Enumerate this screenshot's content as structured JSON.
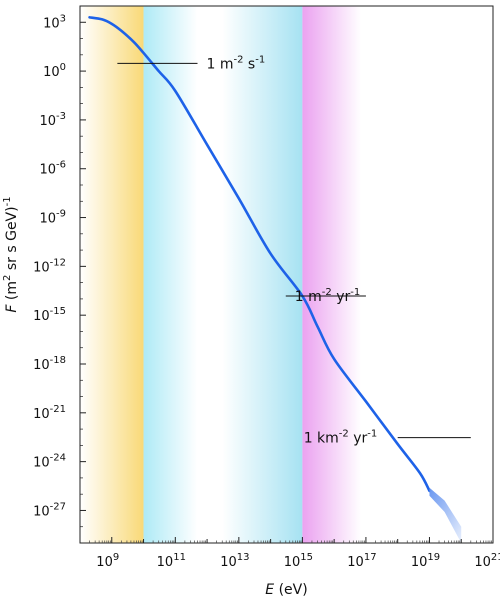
{
  "chart_data": {
    "type": "line",
    "title": "",
    "xlabel": {
      "var": "E",
      "unit": " (eV)"
    },
    "ylabel": {
      "var": "F",
      "base": " (m",
      "sup1": "2",
      "mid": " sr s GeV)",
      "sup2": "-1"
    },
    "xscale": "log",
    "yscale": "log",
    "xlim": [
      100000000.0,
      1e+21
    ],
    "ylim": [
      1e-29,
      10000.0
    ],
    "x_ticks": [
      {
        "base": "10",
        "exp": "9"
      },
      {
        "base": "10",
        "exp": "11"
      },
      {
        "base": "10",
        "exp": "13"
      },
      {
        "base": "10",
        "exp": "15"
      },
      {
        "base": "10",
        "exp": "17"
      },
      {
        "base": "10",
        "exp": "19"
      },
      {
        "base": "10",
        "exp": "21"
      }
    ],
    "y_ticks": [
      {
        "base": "10",
        "exp": "3"
      },
      {
        "base": "10",
        "exp": "0"
      },
      {
        "base": "10",
        "exp": "-3"
      },
      {
        "base": "10",
        "exp": "-6"
      },
      {
        "base": "10",
        "exp": "-9"
      },
      {
        "base": "10",
        "exp": "-12"
      },
      {
        "base": "10",
        "exp": "-15"
      },
      {
        "base": "10",
        "exp": "-18"
      },
      {
        "base": "10",
        "exp": "-21"
      },
      {
        "base": "10",
        "exp": "-24"
      },
      {
        "base": "10",
        "exp": "-27"
      }
    ],
    "bands": [
      {
        "x": [
          100000000.0,
          10000000000.0
        ],
        "color": "#f9d977",
        "style": "fade-left"
      },
      {
        "x": [
          10000000000.0,
          500000000000.0
        ],
        "color": "#aeeaf6",
        "style": "fade-right"
      },
      {
        "x": [
          3000000000000.0,
          1000000000000000.0
        ],
        "color": "#a6e2f2",
        "style": "fade-left"
      },
      {
        "x": [
          1000000000000000.0,
          7e+16
        ],
        "color": "#eba2f0",
        "style": "fade-right"
      }
    ],
    "series": [
      {
        "color": "#1e62e8",
        "points": [
          [
            200000000.0,
            2000.0
          ],
          [
            500000000.0,
            1500.0
          ],
          [
            1000000000.0,
            800.0
          ],
          [
            2000000000.0,
            300.0
          ],
          [
            5000000000.0,
            60.0
          ],
          [
            10000000000.0,
            13.0
          ],
          [
            30000000000.0,
            1.0
          ],
          [
            100000000000.0,
            0.06
          ],
          [
            1000000000000.0,
            3e-05
          ],
          [
            10000000000000.0,
            1.5e-08
          ],
          [
            100000000000000.0,
            6e-12
          ],
          [
            1000000000000000.0,
            1.5e-14
          ],
          [
            3000000000000000.0,
            2e-16
          ],
          [
            1e+16,
            2e-18
          ],
          [
            1e+17,
            5e-21
          ],
          [
            1e+18,
            1.2e-23
          ],
          [
            5e+18,
            2e-25
          ],
          [
            1e+19,
            1.6e-26
          ]
        ]
      }
    ],
    "tail": {
      "color": "#6a97f0",
      "upper": [
        [
          1e+19,
          2.5e-26
        ],
        [
          3e+19,
          4e-27
        ],
        [
          1e+20,
          1e-28
        ]
      ],
      "lower": [
        [
          1e+19,
          8e-27
        ],
        [
          3e+19,
          8e-28
        ],
        [
          1e+20,
          1e-29
        ]
      ]
    },
    "annotations": [
      {
        "y": 3,
        "x_from": 500000000000.0,
        "x_to": 1500000000.0,
        "text_base": "1 m",
        "text_parts": [
          [
            "sup",
            "-2"
          ],
          [
            "txt",
            " s"
          ],
          [
            "sup",
            "-1"
          ]
        ]
      },
      {
        "y": 1.5e-14,
        "x_from": 300000000000000.0,
        "x_to": 1e+17,
        "text_base": "1 m",
        "text_parts": [
          [
            "sup",
            "-2"
          ],
          [
            "txt",
            " yr"
          ],
          [
            "sup",
            "-1"
          ]
        ]
      },
      {
        "y": 3e-23,
        "x_from": 1e+18,
        "x_to": 2e+20,
        "text_base": "1 km",
        "text_parts": [
          [
            "sup",
            "-2"
          ],
          [
            "txt",
            " yr"
          ],
          [
            "sup",
            "-1"
          ]
        ]
      }
    ]
  }
}
